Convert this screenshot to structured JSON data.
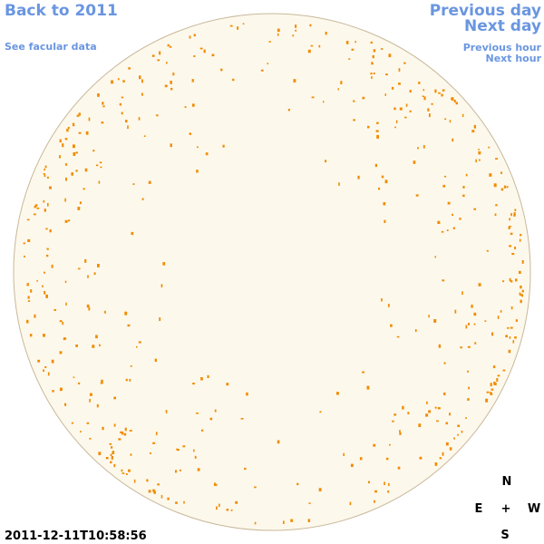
{
  "nav": {
    "back": "Back to 2011",
    "facular": "See facular data",
    "previous_day": "Previous day",
    "next_day": "Next day",
    "previous_hour": "Previous hour",
    "next_hour": "Next hour"
  },
  "timestamp": "2011-12-11T10:58:56",
  "compass": {
    "north": "N",
    "east": "E",
    "center": "+",
    "west": "W",
    "south": "S"
  }
}
